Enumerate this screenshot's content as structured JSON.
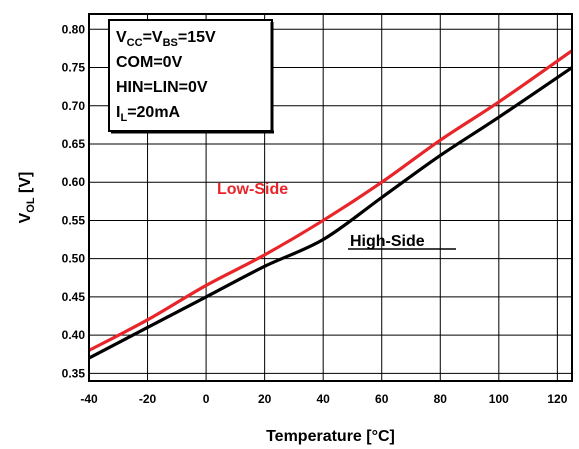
{
  "chart_data": {
    "type": "line",
    "title": "",
    "xlabel": "Temperature [°C]",
    "ylabel": {
      "main": "V",
      "sub": "OL",
      "unit": " [V]"
    },
    "xlim": [
      -40,
      125
    ],
    "ylim": [
      0.34,
      0.82
    ],
    "x_ticks": [
      "-40",
      "-20",
      "0",
      "20",
      "40",
      "60",
      "80",
      "100",
      "120"
    ],
    "y_ticks": [
      "0.35",
      "0.40",
      "0.45",
      "0.50",
      "0.55",
      "0.60",
      "0.65",
      "0.70",
      "0.75",
      "0.80"
    ],
    "grid": true,
    "legend": {
      "placement": "top-left",
      "lines": [
        [
          {
            "t": "V"
          },
          {
            "t": "CC",
            "sub": true
          },
          {
            "t": "=V"
          },
          {
            "t": "BS",
            "sub": true
          },
          {
            "t": "=15V"
          }
        ],
        [
          {
            "t": "COM=0V"
          }
        ],
        [
          {
            "t": "HIN=LIN=0V"
          }
        ],
        [
          {
            "t": "I"
          },
          {
            "t": "L",
            "sub": true
          },
          {
            "t": "=20mA"
          }
        ]
      ]
    },
    "series": [
      {
        "name": "Low-Side",
        "color": "#e8262a",
        "x": [
          -40,
          -20,
          0,
          20,
          40,
          60,
          80,
          100,
          125
        ],
        "y": [
          0.38,
          0.42,
          0.465,
          0.505,
          0.55,
          0.6,
          0.655,
          0.705,
          0.772
        ]
      },
      {
        "name": "High-Side",
        "color": "#000000",
        "x": [
          -40,
          -20,
          0,
          20,
          40,
          60,
          80,
          100,
          125
        ],
        "y": [
          0.37,
          0.41,
          0.45,
          0.49,
          0.525,
          0.58,
          0.635,
          0.685,
          0.75
        ]
      }
    ]
  }
}
